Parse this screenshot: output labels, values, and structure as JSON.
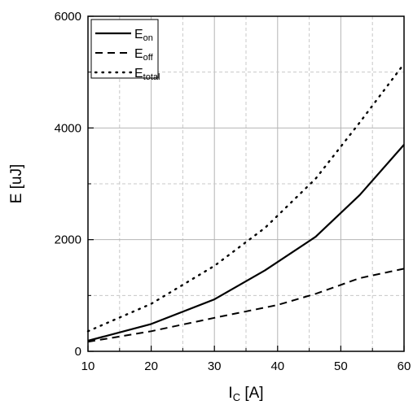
{
  "chart_data": {
    "type": "line",
    "xlabel": {
      "main": "I",
      "sub": "C",
      "rest": " [A]"
    },
    "ylabel": "E [uJ]",
    "xlim": [
      10,
      60
    ],
    "ylim": [
      0,
      6000
    ],
    "x_ticks": [
      10,
      20,
      30,
      40,
      50,
      60
    ],
    "x_tick_labels": [
      "10",
      "20",
      "30",
      "40",
      "50",
      "60"
    ],
    "y_ticks": [
      0,
      2000,
      4000,
      6000
    ],
    "y_tick_labels": [
      "0",
      "2000",
      "4000",
      "6000"
    ],
    "grid": {
      "major": true,
      "minor": true
    },
    "legend_position": "top-left",
    "series": [
      {
        "name_main": "E",
        "name_sub": "on",
        "style": "solid",
        "points": [
          [
            10,
            190
          ],
          [
            20,
            490
          ],
          [
            30,
            930
          ],
          [
            38,
            1450
          ],
          [
            46,
            2050
          ],
          [
            53,
            2800
          ],
          [
            60,
            3700
          ]
        ]
      },
      {
        "name_main": "E",
        "name_sub": "off",
        "style": "dashed",
        "points": [
          [
            10,
            170
          ],
          [
            20,
            360
          ],
          [
            30,
            600
          ],
          [
            40,
            830
          ],
          [
            46,
            1030
          ],
          [
            53,
            1310
          ],
          [
            60,
            1480
          ]
        ]
      },
      {
        "name_main": "E",
        "name_sub": "total",
        "style": "dotted",
        "points": [
          [
            10,
            360
          ],
          [
            20,
            850
          ],
          [
            30,
            1530
          ],
          [
            38,
            2210
          ],
          [
            46,
            3090
          ],
          [
            53,
            4100
          ],
          [
            60,
            5150
          ]
        ]
      }
    ]
  }
}
